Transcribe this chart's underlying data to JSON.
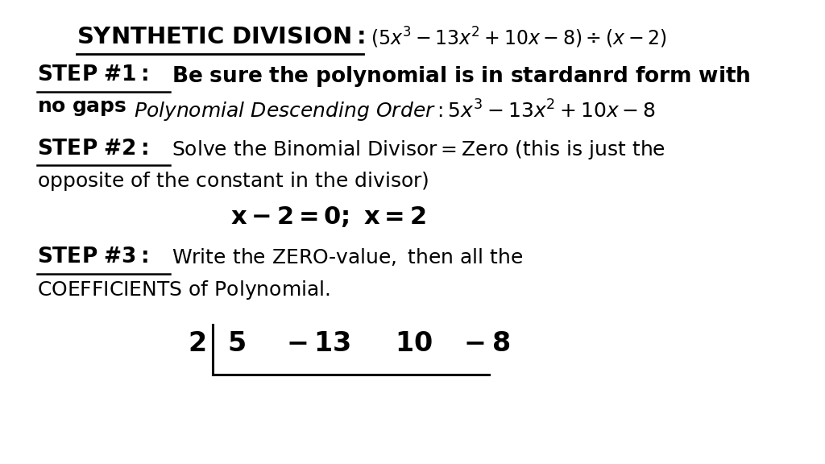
{
  "background_color": "#ffffff",
  "fig_width": 10.24,
  "fig_height": 5.76,
  "dpi": 100,
  "line1_bold": "SYNTHETIC DIVISION:",
  "line1_math": "$(5x^3-13x^2+10x-8)\\div(x-2)$",
  "line2_bold_ul": "STEP #1:",
  "line2_rest": "Be sure the polynomial is in stardanrd form with",
  "line3_nogaps": "no gaps",
  "line3_math": "$\\mathit{Polynomial\\ Descending\\ Order: 5x^3-13x^2+10x-8}$",
  "line4_bold_ul": "STEP #2:",
  "line4_rest": " Solve the Binomial Divisor = Zero (this is just the",
  "line5": "opposite of the constant in the divisor)",
  "line6_eq": "$\\mathbf{x-2=0;\\ x=2}$",
  "line7_bold_ul": "STEP #3:",
  "line7_rest": " Write the ZERO-value, then all the",
  "line8": "COEFFICIENTS of Polynomial.",
  "synth_zero": "2",
  "synth_coeffs": "5   -13    10  -8",
  "colors": {
    "text": "#000000",
    "bg": "#ffffff",
    "line": "#000000"
  }
}
